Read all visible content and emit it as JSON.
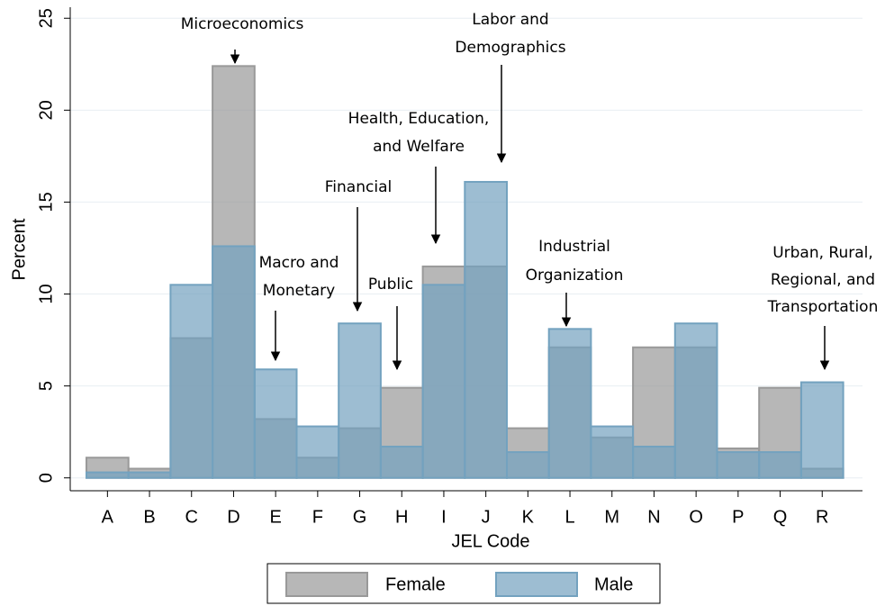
{
  "chart_data": {
    "type": "bar",
    "categories": [
      "A",
      "B",
      "C",
      "D",
      "E",
      "F",
      "G",
      "H",
      "I",
      "J",
      "K",
      "L",
      "M",
      "N",
      "O",
      "P",
      "Q",
      "R"
    ],
    "series": [
      {
        "name": "Female",
        "color": "#b4b4b4",
        "values": [
          1.1,
          0.5,
          7.6,
          22.4,
          3.2,
          1.1,
          2.7,
          4.9,
          11.5,
          11.5,
          2.7,
          7.1,
          2.2,
          7.1,
          7.1,
          1.6,
          4.9,
          0.5
        ]
      },
      {
        "name": "Male",
        "color": "#87bee1",
        "values": [
          0.3,
          0.3,
          10.5,
          12.6,
          5.9,
          2.8,
          8.4,
          1.7,
          10.5,
          16.1,
          1.4,
          8.1,
          2.8,
          1.7,
          8.4,
          1.4,
          1.4,
          5.2
        ]
      }
    ],
    "xlabel": "JEL Code",
    "ylabel": "Percent",
    "ylim": [
      -0.7,
      25.6
    ],
    "yticks": [
      0,
      5,
      10,
      15,
      20,
      25
    ],
    "grid": true,
    "legend": "bottom",
    "annotations": [
      {
        "lines": [
          "Microeconomics"
        ]
      },
      {
        "lines": [
          "Labor and",
          "Demographics"
        ]
      },
      {
        "lines": [
          "Health, Education,",
          "and Welfare"
        ]
      },
      {
        "lines": [
          "Financial"
        ]
      },
      {
        "lines": [
          "Macro and",
          "Monetary"
        ]
      },
      {
        "lines": [
          "Public"
        ]
      },
      {
        "lines": [
          "Industrial",
          "Organization"
        ]
      },
      {
        "lines": [
          "Urban, Rural,",
          "Regional, and",
          "Transportation"
        ]
      }
    ]
  }
}
